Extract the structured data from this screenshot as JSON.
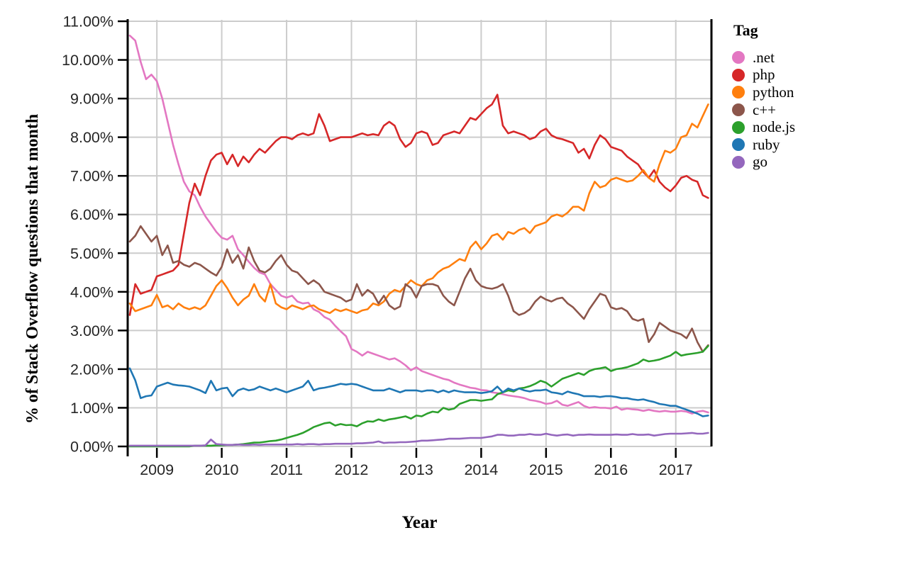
{
  "chart_data": {
    "type": "line",
    "title": "",
    "xlabel": "Year",
    "ylabel": "% of Stack Overflow questions that month",
    "legend_title": "Tag",
    "legend_position": "right",
    "grid": true,
    "background": "#ffffff",
    "gridline_color": "#cccccc",
    "spine_color": "#000000",
    "ylim": [
      0,
      11
    ],
    "xlim": [
      2008.55,
      2017.55
    ],
    "x_start": 2008.5833,
    "x_step_months": 1,
    "x_ticks": [
      2009,
      2010,
      2011,
      2012,
      2013,
      2014,
      2015,
      2016,
      2017
    ],
    "x_tick_labels": [
      "2009",
      "2010",
      "2011",
      "2012",
      "2013",
      "2014",
      "2015",
      "2016",
      "2017"
    ],
    "y_ticks": [
      0,
      1,
      2,
      3,
      4,
      5,
      6,
      7,
      8,
      9,
      10,
      11
    ],
    "y_tick_labels": [
      "0.00%",
      "1.00%",
      "2.00%",
      "3.00%",
      "4.00%",
      "5.00%",
      "6.00%",
      "7.00%",
      "8.00%",
      "9.00%",
      "10.00%",
      "11.00%"
    ],
    "series": [
      {
        "name": ".net",
        "color": "#e377c2",
        "values": [
          10.63,
          10.5,
          9.95,
          9.5,
          9.62,
          9.45,
          9.0,
          8.4,
          7.8,
          7.3,
          6.85,
          6.6,
          6.5,
          6.2,
          5.95,
          5.75,
          5.55,
          5.4,
          5.35,
          5.45,
          5.1,
          4.95,
          4.78,
          4.62,
          4.5,
          4.45,
          4.2,
          4.05,
          3.9,
          3.85,
          3.9,
          3.75,
          3.7,
          3.72,
          3.55,
          3.48,
          3.35,
          3.28,
          3.12,
          2.98,
          2.85,
          2.52,
          2.45,
          2.35,
          2.45,
          2.4,
          2.35,
          2.3,
          2.25,
          2.28,
          2.2,
          2.1,
          1.97,
          2.05,
          1.95,
          1.9,
          1.85,
          1.8,
          1.75,
          1.72,
          1.65,
          1.6,
          1.56,
          1.52,
          1.5,
          1.46,
          1.45,
          1.4,
          1.38,
          1.35,
          1.32,
          1.3,
          1.28,
          1.25,
          1.2,
          1.18,
          1.15,
          1.1,
          1.12,
          1.18,
          1.08,
          1.05,
          1.1,
          1.15,
          1.05,
          1.0,
          1.02,
          1.0,
          1.0,
          0.98,
          1.03,
          0.95,
          0.98,
          0.96,
          0.95,
          0.92,
          0.95,
          0.92,
          0.9,
          0.92,
          0.9,
          0.9,
          0.92,
          0.9,
          0.85,
          0.9,
          0.92,
          0.88
        ]
      },
      {
        "name": "php",
        "color": "#d62728",
        "values": [
          3.4,
          4.2,
          3.95,
          4.0,
          4.05,
          4.4,
          4.45,
          4.5,
          4.55,
          4.7,
          5.5,
          6.3,
          6.8,
          6.5,
          7.0,
          7.4,
          7.55,
          7.6,
          7.3,
          7.55,
          7.25,
          7.5,
          7.35,
          7.55,
          7.7,
          7.6,
          7.75,
          7.9,
          8.0,
          8.0,
          7.95,
          8.05,
          8.1,
          8.05,
          8.1,
          8.6,
          8.3,
          7.9,
          7.95,
          8.0,
          8.0,
          8.0,
          8.05,
          8.1,
          8.05,
          8.08,
          8.05,
          8.3,
          8.4,
          8.3,
          7.95,
          7.75,
          7.85,
          8.1,
          8.15,
          8.1,
          7.8,
          7.85,
          8.05,
          8.1,
          8.15,
          8.1,
          8.3,
          8.5,
          8.45,
          8.6,
          8.75,
          8.85,
          9.1,
          8.3,
          8.1,
          8.15,
          8.1,
          8.05,
          7.95,
          8.0,
          8.15,
          8.22,
          8.05,
          7.98,
          7.95,
          7.9,
          7.85,
          7.6,
          7.7,
          7.45,
          7.8,
          8.05,
          7.95,
          7.75,
          7.7,
          7.65,
          7.5,
          7.4,
          7.3,
          7.1,
          6.95,
          7.15,
          6.85,
          6.7,
          6.6,
          6.75,
          6.95,
          7.0,
          6.9,
          6.85,
          6.5,
          6.43
        ]
      },
      {
        "name": "python",
        "color": "#ff7f0e",
        "values": [
          3.7,
          3.5,
          3.55,
          3.6,
          3.65,
          3.92,
          3.6,
          3.65,
          3.55,
          3.7,
          3.6,
          3.55,
          3.6,
          3.55,
          3.65,
          3.9,
          4.15,
          4.3,
          4.1,
          3.85,
          3.65,
          3.8,
          3.9,
          4.2,
          3.9,
          3.75,
          4.2,
          3.7,
          3.6,
          3.55,
          3.65,
          3.6,
          3.55,
          3.62,
          3.65,
          3.55,
          3.5,
          3.45,
          3.55,
          3.5,
          3.55,
          3.5,
          3.45,
          3.52,
          3.55,
          3.7,
          3.65,
          3.75,
          3.95,
          4.05,
          4.0,
          4.15,
          4.3,
          4.2,
          4.15,
          4.3,
          4.35,
          4.5,
          4.6,
          4.65,
          4.75,
          4.85,
          4.8,
          5.15,
          5.3,
          5.1,
          5.25,
          5.45,
          5.5,
          5.35,
          5.55,
          5.5,
          5.6,
          5.65,
          5.52,
          5.7,
          5.75,
          5.8,
          5.95,
          6.0,
          5.95,
          6.05,
          6.2,
          6.2,
          6.1,
          6.55,
          6.85,
          6.7,
          6.75,
          6.9,
          6.95,
          6.9,
          6.85,
          6.88,
          7.0,
          7.15,
          6.95,
          6.85,
          7.3,
          7.65,
          7.6,
          7.7,
          8.0,
          8.05,
          8.35,
          8.25,
          8.55,
          8.85
        ]
      },
      {
        "name": "c++",
        "color": "#8c564b",
        "values": [
          5.3,
          5.45,
          5.7,
          5.5,
          5.3,
          5.45,
          4.95,
          5.2,
          4.75,
          4.8,
          4.7,
          4.65,
          4.75,
          4.7,
          4.6,
          4.5,
          4.42,
          4.65,
          5.1,
          4.75,
          4.95,
          4.6,
          5.15,
          4.8,
          4.55,
          4.5,
          4.6,
          4.8,
          4.95,
          4.7,
          4.55,
          4.5,
          4.35,
          4.2,
          4.3,
          4.2,
          4.0,
          3.95,
          3.9,
          3.85,
          3.75,
          3.8,
          4.2,
          3.9,
          4.05,
          3.95,
          3.7,
          3.9,
          3.65,
          3.55,
          3.62,
          4.2,
          4.1,
          3.85,
          4.15,
          4.2,
          4.2,
          4.15,
          3.9,
          3.75,
          3.65,
          4.0,
          4.35,
          4.6,
          4.3,
          4.15,
          4.1,
          4.08,
          4.12,
          4.2,
          3.9,
          3.5,
          3.4,
          3.45,
          3.55,
          3.75,
          3.88,
          3.8,
          3.75,
          3.82,
          3.85,
          3.7,
          3.6,
          3.45,
          3.3,
          3.55,
          3.75,
          3.95,
          3.9,
          3.6,
          3.55,
          3.58,
          3.5,
          3.3,
          3.25,
          3.3,
          2.7,
          2.9,
          3.2,
          3.1,
          3.0,
          2.95,
          2.9,
          2.8,
          3.05,
          2.7,
          2.45,
          2.62
        ]
      },
      {
        "name": "node.js",
        "color": "#2ca02c",
        "values": [
          0,
          0,
          0,
          0,
          0,
          0,
          0,
          0,
          0,
          0,
          0,
          0,
          0.02,
          0.02,
          0.02,
          0.02,
          0.03,
          0.03,
          0.04,
          0.04,
          0.05,
          0.06,
          0.08,
          0.1,
          0.1,
          0.12,
          0.14,
          0.15,
          0.18,
          0.22,
          0.26,
          0.3,
          0.35,
          0.42,
          0.5,
          0.55,
          0.6,
          0.62,
          0.54,
          0.58,
          0.55,
          0.56,
          0.52,
          0.6,
          0.65,
          0.64,
          0.7,
          0.66,
          0.7,
          0.72,
          0.75,
          0.78,
          0.72,
          0.8,
          0.78,
          0.85,
          0.9,
          0.88,
          1.0,
          0.95,
          0.98,
          1.1,
          1.15,
          1.2,
          1.2,
          1.18,
          1.2,
          1.22,
          1.35,
          1.4,
          1.45,
          1.42,
          1.5,
          1.52,
          1.56,
          1.62,
          1.7,
          1.65,
          1.55,
          1.65,
          1.75,
          1.8,
          1.85,
          1.9,
          1.85,
          1.95,
          2.0,
          2.02,
          2.05,
          1.95,
          2.0,
          2.02,
          2.05,
          2.1,
          2.15,
          2.25,
          2.2,
          2.22,
          2.25,
          2.3,
          2.35,
          2.45,
          2.35,
          2.38,
          2.4,
          2.42,
          2.45,
          2.6
        ]
      },
      {
        "name": "ruby",
        "color": "#1f77b4",
        "values": [
          2.02,
          1.71,
          1.25,
          1.3,
          1.32,
          1.55,
          1.6,
          1.65,
          1.6,
          1.58,
          1.57,
          1.55,
          1.5,
          1.45,
          1.38,
          1.7,
          1.45,
          1.5,
          1.52,
          1.3,
          1.45,
          1.5,
          1.45,
          1.48,
          1.55,
          1.5,
          1.45,
          1.5,
          1.45,
          1.4,
          1.45,
          1.5,
          1.55,
          1.7,
          1.45,
          1.5,
          1.52,
          1.55,
          1.58,
          1.62,
          1.6,
          1.62,
          1.6,
          1.55,
          1.5,
          1.45,
          1.45,
          1.45,
          1.5,
          1.45,
          1.4,
          1.45,
          1.45,
          1.45,
          1.42,
          1.45,
          1.45,
          1.4,
          1.45,
          1.4,
          1.45,
          1.42,
          1.4,
          1.4,
          1.4,
          1.38,
          1.4,
          1.43,
          1.55,
          1.4,
          1.5,
          1.45,
          1.5,
          1.45,
          1.42,
          1.45,
          1.45,
          1.47,
          1.4,
          1.38,
          1.35,
          1.42,
          1.38,
          1.35,
          1.3,
          1.3,
          1.3,
          1.28,
          1.3,
          1.3,
          1.28,
          1.25,
          1.25,
          1.22,
          1.2,
          1.22,
          1.18,
          1.15,
          1.1,
          1.08,
          1.05,
          1.05,
          1.0,
          0.95,
          0.9,
          0.85,
          0.78,
          0.8
        ]
      },
      {
        "name": "go",
        "color": "#9467bd",
        "values": [
          0.02,
          0.02,
          0.02,
          0.02,
          0.02,
          0.02,
          0.02,
          0.02,
          0.02,
          0.02,
          0.02,
          0.02,
          0.02,
          0.02,
          0.03,
          0.18,
          0.06,
          0.05,
          0.04,
          0.04,
          0.05,
          0.04,
          0.04,
          0.05,
          0.04,
          0.05,
          0.05,
          0.05,
          0.05,
          0.05,
          0.05,
          0.06,
          0.05,
          0.06,
          0.06,
          0.05,
          0.06,
          0.06,
          0.07,
          0.07,
          0.07,
          0.07,
          0.08,
          0.08,
          0.09,
          0.1,
          0.13,
          0.09,
          0.1,
          0.1,
          0.11,
          0.11,
          0.12,
          0.13,
          0.15,
          0.15,
          0.16,
          0.17,
          0.18,
          0.2,
          0.2,
          0.2,
          0.21,
          0.22,
          0.22,
          0.22,
          0.24,
          0.26,
          0.3,
          0.3,
          0.28,
          0.28,
          0.3,
          0.3,
          0.32,
          0.3,
          0.3,
          0.33,
          0.3,
          0.28,
          0.3,
          0.31,
          0.28,
          0.3,
          0.3,
          0.31,
          0.3,
          0.3,
          0.3,
          0.3,
          0.31,
          0.3,
          0.3,
          0.32,
          0.3,
          0.3,
          0.31,
          0.28,
          0.3,
          0.32,
          0.33,
          0.33,
          0.33,
          0.34,
          0.35,
          0.33,
          0.33,
          0.35
        ]
      }
    ]
  }
}
